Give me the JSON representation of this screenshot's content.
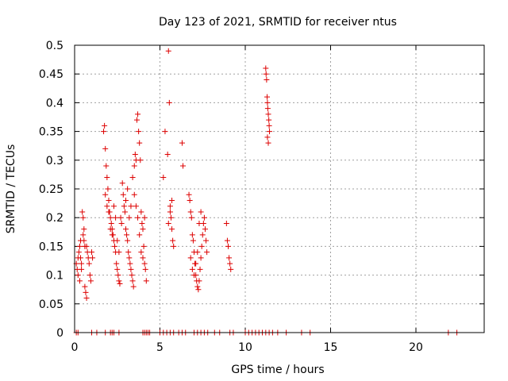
{
  "chart_data": {
    "type": "scatter",
    "title": "Day 123 of 2021, SRMTID for receiver ntus",
    "xlabel": "GPS time / hours",
    "ylabel": "SRMTID / TECUs",
    "xlim": [
      0,
      24
    ],
    "ylim": [
      0,
      0.5
    ],
    "xticks": [
      "0",
      "5",
      "10",
      "15",
      "20"
    ],
    "yticks": [
      "0",
      "0.05",
      "0.1",
      "0.15",
      "0.2",
      "0.25",
      "0.3",
      "0.35",
      "0.4",
      "0.45",
      "0.5"
    ],
    "grid": true,
    "marker": "+",
    "colors": {
      "points": "#dd0000",
      "grid": "#a0a0a0",
      "axes": "#000000"
    },
    "series": [
      {
        "points": [
          [
            0.1,
            0.12
          ],
          [
            0.15,
            0.11
          ],
          [
            0.2,
            0.1
          ],
          [
            0.25,
            0.14
          ],
          [
            0.3,
            0.15
          ],
          [
            0.35,
            0.13
          ],
          [
            0.4,
            0.12
          ],
          [
            0.45,
            0.21
          ],
          [
            0.5,
            0.17
          ],
          [
            0.55,
            0.16
          ],
          [
            0.6,
            0.08
          ],
          [
            0.65,
            0.07
          ],
          [
            0.7,
            0.06
          ],
          [
            0.3,
            0.09
          ],
          [
            0.4,
            0.11
          ],
          [
            0.5,
            0.2
          ],
          [
            0.55,
            0.18
          ],
          [
            0.6,
            0.15
          ],
          [
            0.2,
            0.13
          ],
          [
            0.35,
            0.16
          ],
          [
            0.7,
            0.15
          ],
          [
            0.75,
            0.14
          ],
          [
            0.8,
            0.13
          ],
          [
            0.85,
            0.12
          ],
          [
            0.9,
            0.1
          ],
          [
            0.95,
            0.09
          ],
          [
            1.0,
            0.14
          ],
          [
            1.05,
            0.13
          ],
          [
            1.7,
            0.35
          ],
          [
            1.75,
            0.36
          ],
          [
            1.8,
            0.32
          ],
          [
            1.85,
            0.29
          ],
          [
            1.9,
            0.27
          ],
          [
            1.95,
            0.25
          ],
          [
            2.0,
            0.23
          ],
          [
            2.05,
            0.21
          ],
          [
            2.1,
            0.2
          ],
          [
            2.15,
            0.19
          ],
          [
            2.2,
            0.18
          ],
          [
            2.25,
            0.17
          ],
          [
            2.3,
            0.16
          ],
          [
            2.35,
            0.15
          ],
          [
            2.4,
            0.14
          ],
          [
            2.45,
            0.12
          ],
          [
            2.5,
            0.11
          ],
          [
            2.55,
            0.1
          ],
          [
            2.6,
            0.09
          ],
          [
            2.65,
            0.085
          ],
          [
            1.8,
            0.24
          ],
          [
            1.9,
            0.22
          ],
          [
            2.0,
            0.21
          ],
          [
            2.1,
            0.18
          ],
          [
            2.2,
            0.17
          ],
          [
            2.3,
            0.22
          ],
          [
            2.4,
            0.2
          ],
          [
            2.5,
            0.16
          ],
          [
            2.6,
            0.14
          ],
          [
            2.7,
            0.2
          ],
          [
            2.75,
            0.19
          ],
          [
            2.8,
            0.26
          ],
          [
            2.85,
            0.24
          ],
          [
            2.9,
            0.22
          ],
          [
            2.95,
            0.21
          ],
          [
            3.0,
            0.18
          ],
          [
            3.05,
            0.17
          ],
          [
            3.1,
            0.16
          ],
          [
            3.15,
            0.14
          ],
          [
            3.2,
            0.13
          ],
          [
            3.25,
            0.12
          ],
          [
            3.3,
            0.11
          ],
          [
            3.35,
            0.1
          ],
          [
            3.4,
            0.09
          ],
          [
            3.45,
            0.08
          ],
          [
            3.0,
            0.23
          ],
          [
            3.1,
            0.25
          ],
          [
            3.2,
            0.2
          ],
          [
            3.3,
            0.22
          ],
          [
            3.4,
            0.27
          ],
          [
            3.5,
            0.29
          ],
          [
            3.55,
            0.31
          ],
          [
            3.6,
            0.3
          ],
          [
            3.65,
            0.37
          ],
          [
            3.7,
            0.38
          ],
          [
            3.75,
            0.35
          ],
          [
            3.8,
            0.33
          ],
          [
            3.85,
            0.3
          ],
          [
            3.9,
            0.21
          ],
          [
            3.95,
            0.19
          ],
          [
            4.0,
            0.18
          ],
          [
            4.05,
            0.15
          ],
          [
            4.1,
            0.12
          ],
          [
            4.15,
            0.11
          ],
          [
            4.2,
            0.09
          ],
          [
            3.5,
            0.24
          ],
          [
            3.6,
            0.22
          ],
          [
            3.7,
            0.2
          ],
          [
            3.8,
            0.17
          ],
          [
            3.9,
            0.14
          ],
          [
            4.0,
            0.13
          ],
          [
            4.1,
            0.2
          ],
          [
            5.2,
            0.27
          ],
          [
            5.3,
            0.35
          ],
          [
            5.45,
            0.31
          ],
          [
            5.5,
            0.49
          ],
          [
            5.55,
            0.4
          ],
          [
            5.6,
            0.22
          ],
          [
            5.65,
            0.2
          ],
          [
            5.7,
            0.18
          ],
          [
            5.75,
            0.16
          ],
          [
            5.8,
            0.15
          ],
          [
            5.5,
            0.19
          ],
          [
            5.6,
            0.21
          ],
          [
            5.7,
            0.23
          ],
          [
            6.3,
            0.33
          ],
          [
            6.35,
            0.29
          ],
          [
            6.7,
            0.24
          ],
          [
            6.75,
            0.23
          ],
          [
            6.8,
            0.21
          ],
          [
            6.85,
            0.2
          ],
          [
            6.9,
            0.17
          ],
          [
            6.95,
            0.16
          ],
          [
            7.0,
            0.14
          ],
          [
            7.05,
            0.12
          ],
          [
            7.1,
            0.1
          ],
          [
            7.15,
            0.09
          ],
          [
            7.2,
            0.08
          ],
          [
            7.25,
            0.075
          ],
          [
            7.3,
            0.09
          ],
          [
            7.35,
            0.11
          ],
          [
            7.4,
            0.13
          ],
          [
            7.45,
            0.15
          ],
          [
            7.5,
            0.17
          ],
          [
            7.55,
            0.19
          ],
          [
            7.6,
            0.2
          ],
          [
            7.65,
            0.18
          ],
          [
            7.7,
            0.16
          ],
          [
            7.75,
            0.14
          ],
          [
            6.8,
            0.13
          ],
          [
            6.9,
            0.11
          ],
          [
            7.0,
            0.1
          ],
          [
            7.1,
            0.12
          ],
          [
            7.2,
            0.14
          ],
          [
            7.3,
            0.19
          ],
          [
            7.4,
            0.21
          ],
          [
            8.9,
            0.19
          ],
          [
            8.95,
            0.16
          ],
          [
            9.0,
            0.15
          ],
          [
            9.05,
            0.13
          ],
          [
            9.1,
            0.12
          ],
          [
            9.15,
            0.11
          ],
          [
            11.2,
            0.46
          ],
          [
            11.22,
            0.45
          ],
          [
            11.25,
            0.44
          ],
          [
            11.28,
            0.41
          ],
          [
            11.3,
            0.4
          ],
          [
            11.32,
            0.39
          ],
          [
            11.35,
            0.38
          ],
          [
            11.38,
            0.37
          ],
          [
            11.4,
            0.36
          ],
          [
            11.42,
            0.35
          ],
          [
            11.3,
            0.34
          ],
          [
            11.35,
            0.33
          ],
          [
            0.1,
            0
          ],
          [
            0.2,
            0
          ],
          [
            1.0,
            0
          ],
          [
            1.3,
            0
          ],
          [
            1.8,
            0
          ],
          [
            2.1,
            0
          ],
          [
            2.2,
            0
          ],
          [
            2.3,
            0
          ],
          [
            2.6,
            0
          ],
          [
            4.0,
            0
          ],
          [
            4.1,
            0
          ],
          [
            4.2,
            0
          ],
          [
            4.3,
            0
          ],
          [
            4.4,
            0
          ],
          [
            5.0,
            0
          ],
          [
            5.2,
            0
          ],
          [
            5.4,
            0
          ],
          [
            5.6,
            0
          ],
          [
            5.8,
            0
          ],
          [
            6.1,
            0
          ],
          [
            6.3,
            0
          ],
          [
            6.5,
            0
          ],
          [
            7.0,
            0
          ],
          [
            7.2,
            0
          ],
          [
            7.4,
            0
          ],
          [
            7.6,
            0
          ],
          [
            7.8,
            0
          ],
          [
            8.2,
            0
          ],
          [
            8.5,
            0
          ],
          [
            9.1,
            0
          ],
          [
            9.3,
            0
          ],
          [
            10.0,
            0
          ],
          [
            10.2,
            0
          ],
          [
            10.4,
            0
          ],
          [
            10.6,
            0
          ],
          [
            10.8,
            0
          ],
          [
            11.0,
            0
          ],
          [
            11.2,
            0
          ],
          [
            11.4,
            0
          ],
          [
            11.6,
            0
          ],
          [
            11.9,
            0
          ],
          [
            12.4,
            0
          ],
          [
            13.3,
            0
          ],
          [
            13.8,
            0
          ],
          [
            21.9,
            0
          ],
          [
            22.4,
            0
          ]
        ]
      }
    ]
  }
}
